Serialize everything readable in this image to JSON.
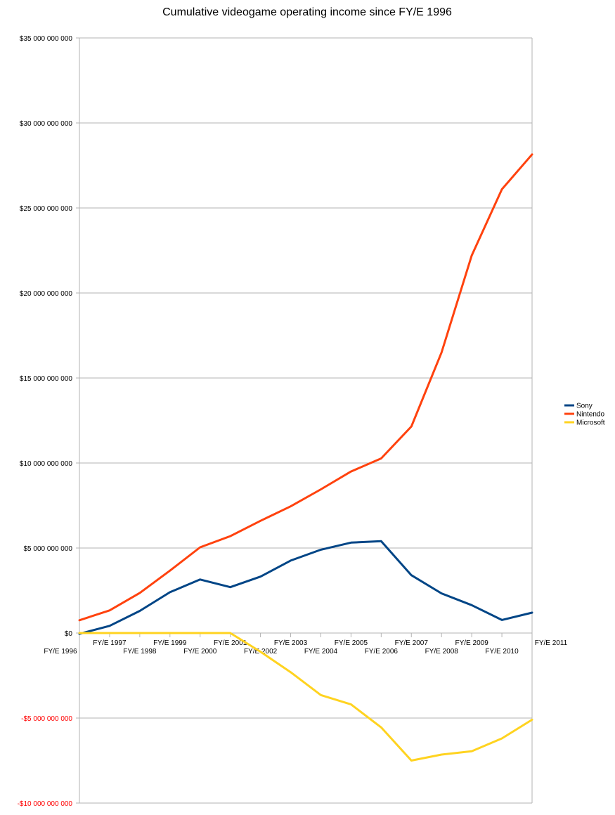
{
  "chart_data": {
    "type": "line",
    "title": "Cumulative videogame operating income since FY/E 1996",
    "categories": [
      "FY/E 1996",
      "FY/E 1997",
      "FY/E 1998",
      "FY/E 1999",
      "FY/E 2000",
      "FY/E 2001",
      "FY/E 2002",
      "FY/E 2003",
      "FY/E 2004",
      "FY/E 2005",
      "FY/E 2006",
      "FY/E 2007",
      "FY/E 2008",
      "FY/E 2009",
      "FY/E 2010",
      "FY/E 2011"
    ],
    "ylim": [
      -10000000000,
      35000000000
    ],
    "yticks": [
      {
        "value": 35000000000,
        "label": "$35 000 000 000"
      },
      {
        "value": 30000000000,
        "label": "$30 000 000 000"
      },
      {
        "value": 25000000000,
        "label": "$25 000 000 000"
      },
      {
        "value": 20000000000,
        "label": "$20 000 000 000"
      },
      {
        "value": 15000000000,
        "label": "$15 000 000 000"
      },
      {
        "value": 10000000000,
        "label": "$10 000 000 000"
      },
      {
        "value": 5000000000,
        "label": "$5 000 000 000"
      },
      {
        "value": 0,
        "label": "$0"
      },
      {
        "value": -5000000000,
        "label": "-$5 000 000 000"
      },
      {
        "value": -10000000000,
        "label": "-$10 000 000 000"
      }
    ],
    "grid": true,
    "legend": "right",
    "series": [
      {
        "name": "Sony",
        "color": "#004586",
        "values": [
          -50000000,
          420000000,
          1300000000,
          2400000000,
          3150000000,
          2700000000,
          3320000000,
          4260000000,
          4900000000,
          5320000000,
          5400000000,
          3400000000,
          2330000000,
          1640000000,
          770000000,
          1200000000
        ]
      },
      {
        "name": "Nintendo",
        "color": "#ff420e",
        "values": [
          750000000,
          1330000000,
          2360000000,
          3670000000,
          5040000000,
          5700000000,
          6600000000,
          7450000000,
          8450000000,
          9500000000,
          10270000000,
          12150000000,
          16500000000,
          22200000000,
          26100000000,
          28150000000
        ]
      },
      {
        "name": "Microsoft",
        "color": "#ffd320",
        "values": [
          0,
          0,
          0,
          0,
          0,
          0,
          -1100000000,
          -2300000000,
          -3650000000,
          -4200000000,
          -5550000000,
          -7500000000,
          -7150000000,
          -6950000000,
          -6200000000,
          -5100000000
        ]
      }
    ],
    "colors": {
      "negative_tick": "#ff0000",
      "positive_tick": "#000000",
      "grid": "#b3b3b3"
    }
  }
}
